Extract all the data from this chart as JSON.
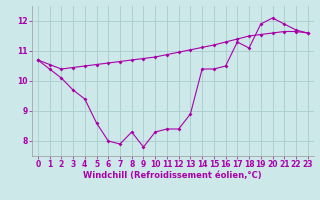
{
  "windchill_line": {
    "x": [
      0,
      1,
      2,
      3,
      4,
      5,
      6,
      7,
      8,
      9,
      10,
      11,
      12,
      13,
      14,
      15,
      16,
      17,
      18,
      19,
      20,
      21,
      22,
      23
    ],
    "y": [
      10.7,
      10.4,
      10.1,
      9.7,
      9.4,
      8.6,
      8.0,
      7.9,
      8.3,
      7.8,
      8.3,
      8.4,
      8.4,
      8.9,
      10.4,
      10.4,
      10.5,
      11.3,
      11.1,
      11.9,
      12.1,
      11.9,
      11.7,
      11.6
    ]
  },
  "temperature_line": {
    "x": [
      0,
      1,
      2,
      3,
      4,
      5,
      6,
      7,
      8,
      9,
      10,
      11,
      12,
      13,
      14,
      15,
      16,
      17,
      18,
      19,
      20,
      21,
      22,
      23
    ],
    "y": [
      10.7,
      10.55,
      10.4,
      10.45,
      10.5,
      10.55,
      10.6,
      10.65,
      10.7,
      10.75,
      10.8,
      10.88,
      10.96,
      11.04,
      11.12,
      11.2,
      11.3,
      11.4,
      11.5,
      11.55,
      11.6,
      11.65,
      11.65,
      11.6
    ]
  },
  "line_color": "#aa00aa",
  "background_color": "#cce8e8",
  "grid_color": "#aacccc",
  "xlabel": "Windchill (Refroidissement éolien,°C)",
  "ylim": [
    7.5,
    12.5
  ],
  "xlim": [
    -0.5,
    23.5
  ],
  "yticks": [
    8,
    9,
    10,
    11,
    12
  ],
  "xticks": [
    0,
    1,
    2,
    3,
    4,
    5,
    6,
    7,
    8,
    9,
    10,
    11,
    12,
    13,
    14,
    15,
    16,
    17,
    18,
    19,
    20,
    21,
    22,
    23
  ],
  "tick_fontsize": 5.5,
  "xlabel_fontsize": 6.0,
  "marker_size": 2.0,
  "line_width": 0.8
}
